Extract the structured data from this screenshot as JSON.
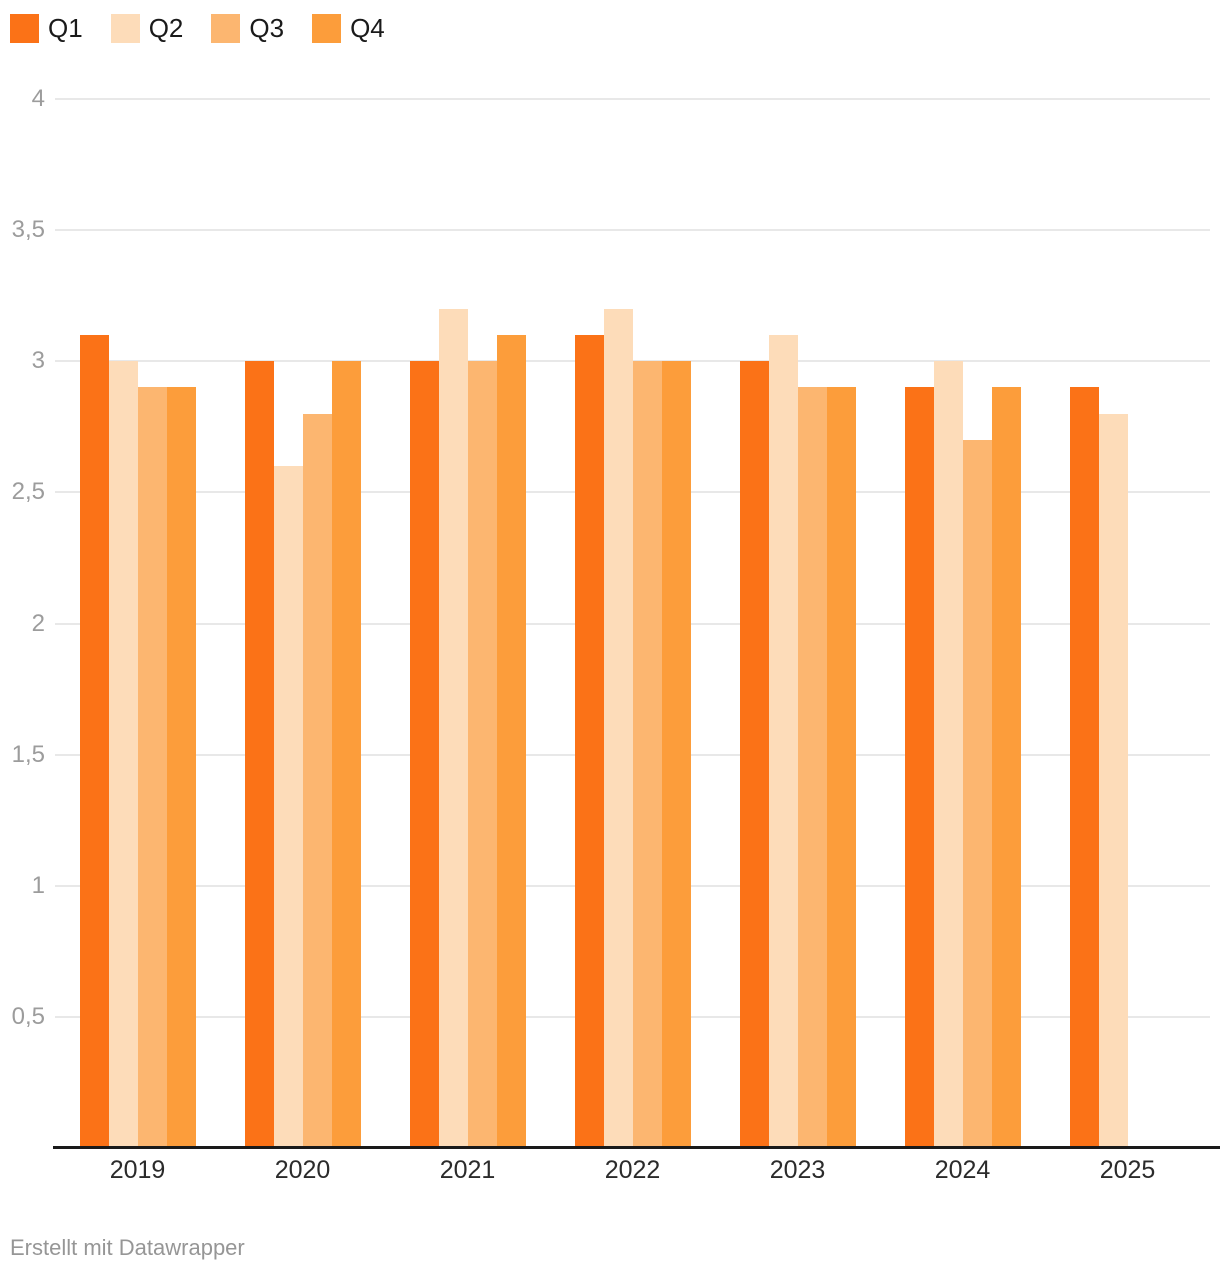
{
  "chart_data": {
    "type": "bar",
    "categories": [
      "2019",
      "2020",
      "2021",
      "2022",
      "2023",
      "2024",
      "2025"
    ],
    "series": [
      {
        "name": "Q1",
        "color": "#FB7217",
        "values": [
          3.1,
          3.0,
          3.0,
          3.1,
          3.0,
          2.9,
          2.9
        ]
      },
      {
        "name": "Q2",
        "color": "#FDDCB9",
        "values": [
          3.0,
          2.6,
          3.2,
          3.2,
          3.1,
          3.0,
          2.8
        ]
      },
      {
        "name": "Q3",
        "color": "#FCB670",
        "values": [
          2.9,
          2.8,
          3.0,
          3.0,
          2.9,
          2.7,
          null
        ]
      },
      {
        "name": "Q4",
        "color": "#FC9D3B",
        "values": [
          2.9,
          3.0,
          3.1,
          3.0,
          2.9,
          2.9,
          null
        ]
      }
    ],
    "title": "",
    "xlabel": "",
    "ylabel": "",
    "ylim": [
      0,
      4
    ],
    "y_ticks": [
      {
        "value": 0.5,
        "label": "0,5"
      },
      {
        "value": 1,
        "label": "1"
      },
      {
        "value": 1.5,
        "label": "1,5"
      },
      {
        "value": 2,
        "label": "2"
      },
      {
        "value": 2.5,
        "label": "2,5"
      },
      {
        "value": 3,
        "label": "3"
      },
      {
        "value": 3.5,
        "label": "3,5"
      },
      {
        "value": 4,
        "label": "4"
      }
    ],
    "grid": true,
    "legend_position": "top-left",
    "decimal_format": "comma"
  },
  "footer": {
    "credit": "Erstellt mit Datawrapper"
  },
  "colors": {
    "background": "#FFFFFF",
    "axis_line": "#1A1A1A",
    "gridline": "#E8E8E8",
    "tick_label": "#9C9C9C",
    "category_label": "#2B2B2B",
    "legend_label": "#1A1A1A",
    "footer_text": "#969696"
  }
}
